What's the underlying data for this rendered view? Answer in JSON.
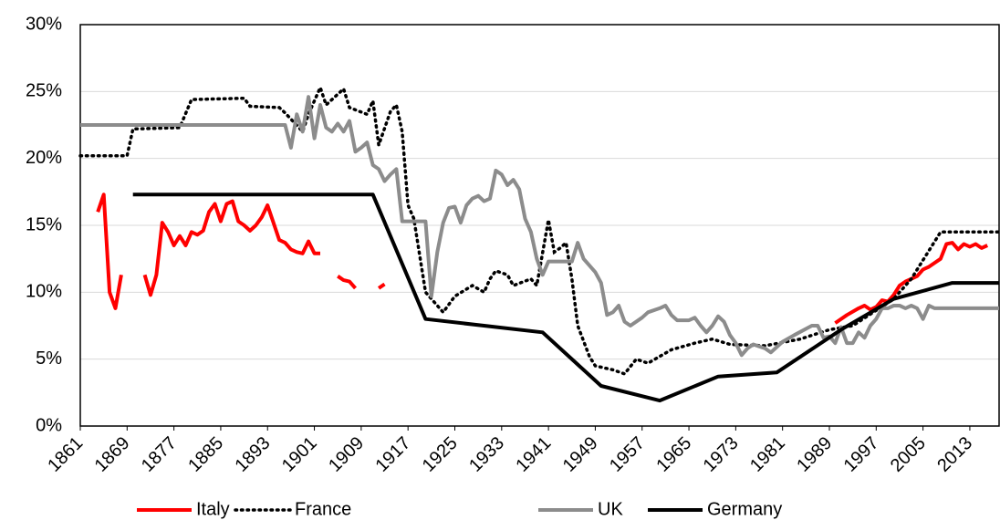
{
  "chart_data": {
    "type": "line",
    "xlim": [
      1861,
      2018
    ],
    "xticks": [
      1861,
      1869,
      1877,
      1885,
      1893,
      1901,
      1909,
      1917,
      1925,
      1933,
      1941,
      1949,
      1957,
      1965,
      1973,
      1981,
      1989,
      1997,
      2005,
      2013
    ],
    "ylim": [
      0,
      30
    ],
    "yticks": [
      {
        "value": 0,
        "label": "0%"
      },
      {
        "value": 5,
        "label": "5%"
      },
      {
        "value": 10,
        "label": "10%"
      },
      {
        "value": 15,
        "label": "15%"
      },
      {
        "value": 20,
        "label": "20%"
      },
      {
        "value": 25,
        "label": "25%"
      },
      {
        "value": 30,
        "label": "30%"
      }
    ],
    "grid": true,
    "legend": "bottom",
    "series": [
      {
        "name": "Italy",
        "color": "#ff0000",
        "line_style": "solid",
        "x": [
          1864,
          1865,
          1866,
          1867,
          1868,
          1869,
          1872,
          1873,
          1874,
          1875,
          1876,
          1877,
          1878,
          1879,
          1880,
          1881,
          1882,
          1883,
          1884,
          1885,
          1886,
          1887,
          1888,
          1889,
          1890,
          1891,
          1892,
          1893,
          1894,
          1895,
          1896,
          1897,
          1898,
          1899,
          1900,
          1901,
          1902,
          1903,
          1905,
          1906,
          1907,
          1908,
          1909,
          1912,
          1913,
          1989,
          1990,
          1992,
          1994,
          1995,
          1996,
          1997,
          1998,
          1999,
          2000,
          2001,
          2002,
          2003,
          2004,
          2005,
          2006,
          2007,
          2008,
          2009,
          2010,
          2011,
          2012,
          2013,
          2014,
          2015,
          2016
        ],
        "values": [
          16,
          17.3,
          10,
          8.8,
          11.3,
          null,
          11.3,
          9.8,
          11.3,
          15.2,
          14.5,
          13.5,
          14.2,
          13.5,
          14.5,
          14.3,
          14.6,
          16,
          16.6,
          15.3,
          16.6,
          16.8,
          15.3,
          15,
          14.6,
          15,
          15.6,
          16.5,
          15.2,
          13.9,
          13.7,
          13.2,
          13,
          12.9,
          13.8,
          12.9,
          12.9,
          null,
          11.2,
          10.9,
          10.8,
          10.3,
          null,
          10.3,
          10.6,
          null,
          7.7,
          8.3,
          8.8,
          9,
          8.7,
          8.9,
          9.4,
          9.3,
          9.8,
          10.5,
          10.8,
          11,
          11.2,
          11.7,
          11.9,
          12.2,
          12.5,
          13.6,
          13.7,
          13.2,
          13.6,
          13.4,
          13.6,
          13.3,
          13.5
        ]
      },
      {
        "name": "France",
        "color": "#000000",
        "line_style": "dotted",
        "x": [
          1861,
          1869,
          1870,
          1878,
          1880,
          1889,
          1890,
          1895,
          1896,
          1899,
          1900,
          1902,
          1903,
          1906,
          1907,
          1910,
          1911,
          1912,
          1914,
          1915,
          1916,
          1917,
          1918,
          1920,
          1922,
          1923,
          1925,
          1928,
          1930,
          1931,
          1932,
          1934,
          1935,
          1938,
          1939,
          1941,
          1942,
          1943,
          1944,
          1945,
          1946,
          1948,
          1949,
          1952,
          1954,
          1956,
          1958,
          1962,
          1966,
          1969,
          1972,
          1978,
          1984,
          1989,
          1993,
          2000,
          2003,
          2008,
          2018
        ],
        "values": [
          20.2,
          20.2,
          22.2,
          22.3,
          24.4,
          24.5,
          23.9,
          23.8,
          23.4,
          22,
          23.3,
          25.3,
          24,
          25.2,
          23.8,
          23.3,
          24.3,
          21,
          23.5,
          24,
          22,
          16.5,
          15.5,
          10,
          9,
          8.5,
          9.7,
          10.5,
          10,
          11,
          11.6,
          11.3,
          10.5,
          11,
          10.5,
          15.4,
          13,
          13.3,
          13.7,
          11,
          7.5,
          5.2,
          4.5,
          4.2,
          3.9,
          5,
          4.7,
          5.7,
          6.2,
          6.5,
          6.1,
          6,
          6.5,
          7.2,
          7.5,
          9.5,
          11,
          14.5,
          14.5
        ]
      },
      {
        "name": "UK",
        "color": "#8c8c8c",
        "line_style": "solid",
        "x": [
          1861,
          1896,
          1897,
          1898,
          1899,
          1900,
          1901,
          1902,
          1903,
          1904,
          1905,
          1906,
          1907,
          1908,
          1909,
          1910,
          1911,
          1912,
          1913,
          1914,
          1915,
          1916,
          1920,
          1921,
          1922,
          1923,
          1924,
          1925,
          1926,
          1927,
          1928,
          1929,
          1930,
          1931,
          1932,
          1933,
          1934,
          1935,
          1936,
          1937,
          1938,
          1939,
          1940,
          1941,
          1945,
          1946,
          1947,
          1949,
          1950,
          1951,
          1952,
          1953,
          1954,
          1955,
          1957,
          1958,
          1960,
          1961,
          1962,
          1963,
          1965,
          1966,
          1967,
          1968,
          1969,
          1970,
          1971,
          1972,
          1973,
          1974,
          1975,
          1976,
          1978,
          1979,
          1981,
          1983,
          1986,
          1987,
          1988,
          1989,
          1990,
          1991,
          1992,
          1993,
          1994,
          1995,
          1996,
          1997,
          1998,
          1999,
          2000,
          2001,
          2002,
          2003,
          2004,
          2005,
          2006,
          2007,
          2018
        ],
        "values": [
          22.5,
          22.5,
          20.8,
          23.3,
          22,
          24.6,
          21.5,
          24,
          22.3,
          22,
          22.6,
          22,
          22.8,
          20.5,
          20.8,
          21.2,
          19.5,
          19.2,
          18.3,
          18.8,
          19.2,
          15.3,
          15.3,
          9.7,
          13,
          15.2,
          16.3,
          16.4,
          15.2,
          16.5,
          17,
          17.2,
          16.8,
          17,
          19.1,
          18.8,
          18,
          18.4,
          17.7,
          15.5,
          14.5,
          12.5,
          11.3,
          12.3,
          12.3,
          13.7,
          12.5,
          11.5,
          10.7,
          8.3,
          8.5,
          9,
          7.8,
          7.5,
          8.1,
          8.5,
          8.8,
          9,
          8.3,
          7.9,
          7.9,
          8.1,
          7.5,
          7,
          7.5,
          8.2,
          7.8,
          6.8,
          6.2,
          5.3,
          5.8,
          6.1,
          5.8,
          5.5,
          6.3,
          6.8,
          7.5,
          7.5,
          6.6,
          6.7,
          6.2,
          7.4,
          6.2,
          6.2,
          7,
          6.6,
          7.5,
          8,
          8.8,
          8.8,
          9,
          9,
          8.8,
          9,
          8.8,
          8,
          9,
          8.8,
          8.8
        ]
      },
      {
        "name": "Germany",
        "color": "#000000",
        "line_style": "solid",
        "x": [
          1870,
          1911,
          1920,
          1940,
          1950,
          1960,
          1970,
          1980,
          1991,
          2000,
          2010,
          2018
        ],
        "values": [
          17.3,
          17.3,
          8,
          7,
          3,
          1.9,
          3.7,
          4,
          7.2,
          9.5,
          10.7,
          10.7
        ]
      }
    ]
  }
}
